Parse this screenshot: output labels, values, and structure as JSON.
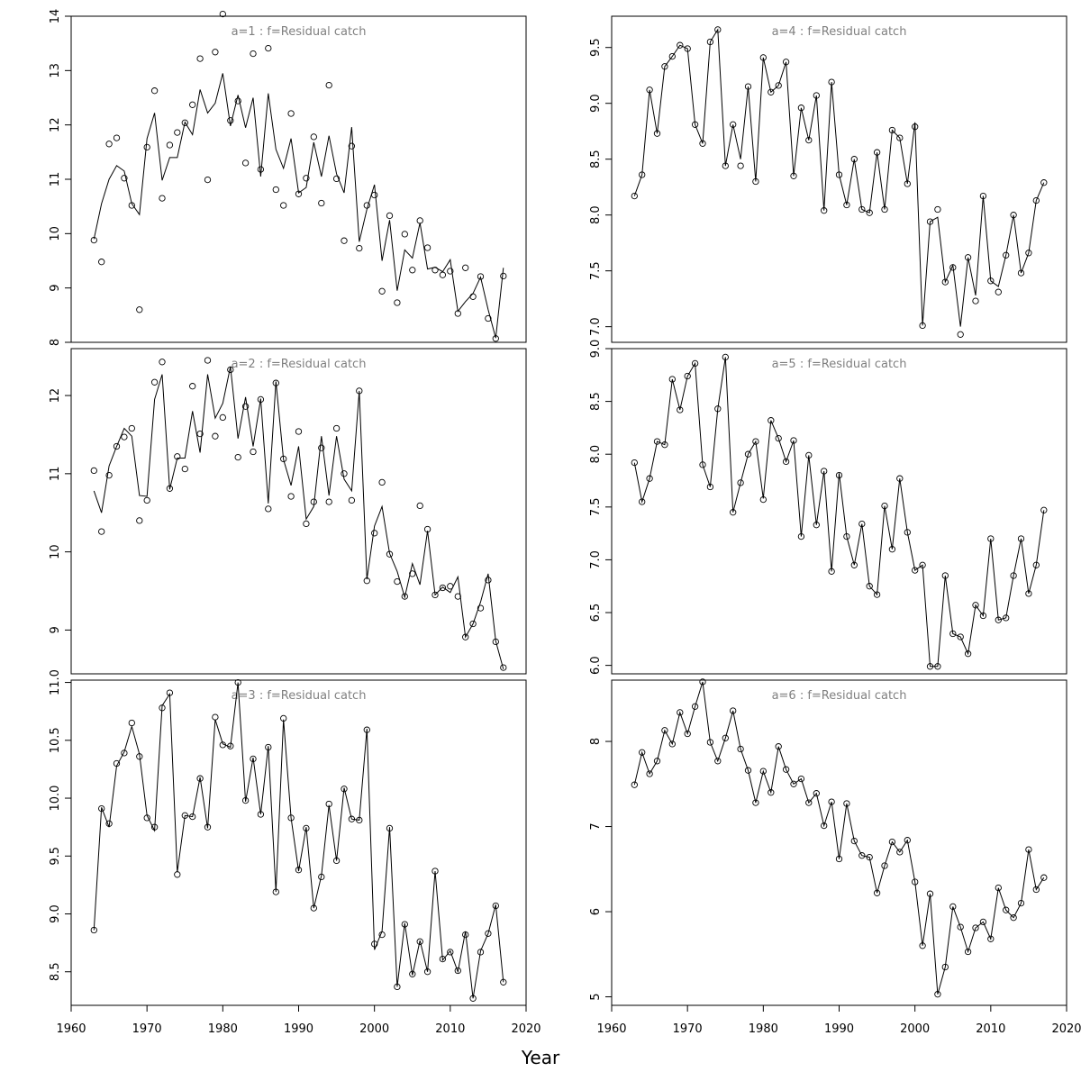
{
  "figure": {
    "xlabel": "Year",
    "x_ticks": [
      1960,
      1970,
      1980,
      1990,
      2000,
      2010,
      2020
    ],
    "colors": {
      "line": "#000000",
      "frame": "#000000",
      "panel_label": "#808080"
    }
  },
  "chart_data": [
    {
      "type": "line",
      "title": "a=1  :  f=Residual catch",
      "xlim": [
        1960,
        2020
      ],
      "ylim": [
        8,
        14
      ],
      "y_ticks": [
        8,
        9,
        10,
        11,
        12,
        13,
        14
      ],
      "x": [
        1963,
        1964,
        1965,
        1966,
        1967,
        1968,
        1969,
        1970,
        1971,
        1972,
        1973,
        1974,
        1975,
        1976,
        1977,
        1978,
        1979,
        1980,
        1981,
        1982,
        1983,
        1984,
        1985,
        1986,
        1987,
        1988,
        1989,
        1990,
        1991,
        1992,
        1993,
        1994,
        1995,
        1996,
        1997,
        1998,
        1999,
        2000,
        2001,
        2002,
        2003,
        2004,
        2005,
        2006,
        2007,
        2008,
        2009,
        2010,
        2011,
        2012,
        2013,
        2014,
        2015,
        2016,
        2017
      ],
      "series": [
        {
          "values": [
            9.88,
            9.48,
            11.65,
            11.76,
            11.02,
            10.52,
            8.6,
            11.59,
            12.63,
            10.65,
            11.63,
            11.86,
            12.04,
            12.37,
            13.22,
            10.99,
            13.34,
            14.04,
            12.08,
            12.44,
            11.3,
            13.31,
            11.18,
            13.41,
            10.81,
            10.52,
            12.21,
            10.73,
            11.02,
            11.78,
            10.56,
            12.73,
            11.01,
            9.87,
            11.61,
            9.73,
            10.52,
            10.71,
            8.94,
            10.33,
            8.73,
            9.99,
            9.33,
            10.24,
            9.74,
            9.33,
            9.24,
            9.31,
            8.53,
            9.37,
            8.84,
            9.21,
            8.44,
            8.07,
            9.22
          ]
        },
        {
          "values": [
            9.9,
            10.55,
            11.0,
            11.25,
            11.15,
            10.55,
            10.35,
            11.75,
            12.22,
            10.98,
            11.4,
            11.4,
            12.05,
            11.82,
            12.65,
            12.22,
            12.4,
            12.95,
            11.98,
            12.55,
            11.95,
            12.5,
            11.05,
            12.58,
            11.55,
            11.2,
            11.75,
            10.75,
            10.85,
            11.68,
            11.05,
            11.8,
            11.1,
            10.75,
            11.96,
            9.85,
            10.45,
            10.9,
            9.5,
            10.25,
            8.95,
            9.7,
            9.55,
            10.2,
            9.35,
            9.38,
            9.3,
            9.52,
            8.57,
            8.75,
            8.9,
            9.2,
            8.6,
            8.08,
            9.37
          ]
        }
      ]
    },
    {
      "type": "line",
      "title": "a=2  :  f=Residual catch",
      "xlim": [
        1960,
        2020
      ],
      "ylim": [
        8.44,
        12.6
      ],
      "y_ticks": [
        9,
        10,
        11,
        12
      ],
      "x": [
        1963,
        1964,
        1965,
        1966,
        1967,
        1968,
        1969,
        1970,
        1971,
        1972,
        1973,
        1974,
        1975,
        1976,
        1977,
        1978,
        1979,
        1980,
        1981,
        1982,
        1983,
        1984,
        1985,
        1986,
        1987,
        1988,
        1989,
        1990,
        1991,
        1992,
        1993,
        1994,
        1995,
        1996,
        1997,
        1998,
        1999,
        2000,
        2001,
        2002,
        2003,
        2004,
        2005,
        2006,
        2007,
        2008,
        2009,
        2010,
        2011,
        2012,
        2013,
        2014,
        2015,
        2016,
        2017
      ],
      "series": [
        {
          "values": [
            11.04,
            10.26,
            10.98,
            11.35,
            11.47,
            11.58,
            10.4,
            10.66,
            12.17,
            12.43,
            10.81,
            11.22,
            11.06,
            12.12,
            11.51,
            12.45,
            11.48,
            11.72,
            12.33,
            11.21,
            11.86,
            11.28,
            11.95,
            10.55,
            12.16,
            11.19,
            10.71,
            11.54,
            10.36,
            10.64,
            11.33,
            10.64,
            11.58,
            11.0,
            10.66,
            12.06,
            9.63,
            10.24,
            10.89,
            9.97,
            9.62,
            9.43,
            9.72,
            10.59,
            10.29,
            9.45,
            9.54,
            9.56,
            9.43,
            8.91,
            9.08,
            9.28,
            9.64,
            8.85,
            8.52
          ]
        },
        {
          "values": [
            10.78,
            10.5,
            11.1,
            11.35,
            11.58,
            11.48,
            10.72,
            10.71,
            11.95,
            12.27,
            10.8,
            11.2,
            11.2,
            11.8,
            11.27,
            12.27,
            11.71,
            11.9,
            12.37,
            11.45,
            11.98,
            11.35,
            11.96,
            10.62,
            12.18,
            11.18,
            10.85,
            11.35,
            10.42,
            10.58,
            11.48,
            10.72,
            11.48,
            10.93,
            10.78,
            12.06,
            9.65,
            10.33,
            10.58,
            9.98,
            9.75,
            9.42,
            9.85,
            9.58,
            10.27,
            9.45,
            9.55,
            9.48,
            9.68,
            8.91,
            9.08,
            9.36,
            9.72,
            8.86,
            8.5
          ]
        }
      ]
    },
    {
      "type": "line",
      "title": "a=3  :  f=Residual catch",
      "xlim": [
        1960,
        2020
      ],
      "ylim": [
        8.21,
        11.02
      ],
      "y_ticks": [
        8.5,
        9.0,
        9.5,
        10.0,
        10.5,
        11.0
      ],
      "y_tick_labels": [
        "8.5",
        "9.0",
        "9.5",
        "10.0",
        "10.5",
        "11.0"
      ],
      "x": [
        1963,
        1964,
        1965,
        1966,
        1967,
        1968,
        1969,
        1970,
        1971,
        1972,
        1973,
        1974,
        1975,
        1976,
        1977,
        1978,
        1979,
        1980,
        1981,
        1982,
        1983,
        1984,
        1985,
        1986,
        1987,
        1988,
        1989,
        1990,
        1991,
        1992,
        1993,
        1994,
        1995,
        1996,
        1997,
        1998,
        1999,
        2000,
        2001,
        2002,
        2003,
        2004,
        2005,
        2006,
        2007,
        2008,
        2009,
        2010,
        2011,
        2012,
        2013,
        2014,
        2015,
        2016,
        2017
      ],
      "series": [
        {
          "values": [
            8.86,
            9.91,
            9.78,
            10.3,
            10.39,
            10.65,
            10.36,
            9.83,
            9.75,
            10.78,
            10.91,
            9.34,
            9.85,
            9.84,
            10.17,
            9.75,
            10.7,
            10.46,
            10.45,
            11.0,
            9.98,
            10.34,
            9.86,
            10.44,
            9.19,
            10.69,
            9.83,
            9.38,
            9.74,
            9.05,
            9.32,
            9.95,
            9.46,
            10.08,
            9.82,
            9.81,
            10.59,
            8.74,
            8.82,
            9.74,
            8.37,
            8.91,
            8.48,
            8.76,
            8.5,
            9.37,
            8.61,
            8.67,
            8.51,
            8.82,
            8.27,
            8.67,
            8.83,
            9.07,
            8.41
          ]
        },
        {
          "values": [
            8.86,
            9.92,
            9.75,
            10.28,
            10.4,
            10.62,
            10.38,
            9.85,
            9.72,
            10.8,
            10.9,
            9.36,
            9.85,
            9.84,
            10.18,
            9.74,
            10.68,
            10.47,
            10.44,
            11.0,
            9.97,
            10.35,
            9.86,
            10.45,
            9.19,
            10.68,
            9.83,
            9.37,
            9.75,
            9.05,
            9.33,
            9.94,
            9.46,
            10.09,
            9.82,
            9.81,
            10.6,
            8.69,
            8.85,
            9.75,
            8.37,
            8.92,
            8.47,
            8.77,
            8.5,
            9.37,
            8.6,
            8.68,
            8.5,
            8.85,
            8.27,
            8.68,
            8.83,
            9.08,
            8.41
          ]
        }
      ]
    },
    {
      "type": "line",
      "title": "a=4  :  f=Residual catch",
      "xlim": [
        1960,
        2020
      ],
      "ylim": [
        6.86,
        9.78
      ],
      "y_ticks": [
        7.0,
        7.5,
        8.0,
        8.5,
        9.0,
        9.5
      ],
      "y_tick_labels": [
        "7.0",
        "7.5",
        "8.0",
        "8.5",
        "9.0",
        "9.5"
      ],
      "x": [
        1963,
        1964,
        1965,
        1966,
        1967,
        1968,
        1969,
        1970,
        1971,
        1972,
        1973,
        1974,
        1975,
        1976,
        1977,
        1978,
        1979,
        1980,
        1981,
        1982,
        1983,
        1984,
        1985,
        1986,
        1987,
        1988,
        1989,
        1990,
        1991,
        1992,
        1993,
        1994,
        1995,
        1996,
        1997,
        1998,
        1999,
        2000,
        2001,
        2002,
        2003,
        2004,
        2005,
        2006,
        2007,
        2008,
        2009,
        2010,
        2011,
        2012,
        2013,
        2014,
        2015,
        2016,
        2017
      ],
      "series": [
        {
          "values": [
            8.17,
            8.36,
            9.12,
            8.73,
            9.33,
            9.42,
            9.52,
            9.49,
            8.81,
            8.64,
            9.55,
            9.66,
            8.44,
            8.81,
            8.44,
            9.15,
            8.3,
            9.41,
            9.1,
            9.16,
            9.37,
            8.35,
            8.96,
            8.67,
            9.07,
            8.04,
            9.19,
            8.36,
            8.09,
            8.5,
            8.05,
            8.02,
            8.56,
            8.05,
            8.76,
            8.69,
            8.28,
            8.79,
            7.01,
            7.94,
            8.05,
            7.4,
            7.53,
            6.93,
            7.62,
            7.23,
            8.17,
            7.41,
            7.31,
            7.64,
            8.0,
            7.48,
            7.66,
            8.13,
            8.29
          ]
        },
        {
          "values": [
            8.17,
            8.36,
            9.12,
            8.73,
            9.33,
            9.42,
            9.52,
            9.49,
            8.81,
            8.64,
            9.55,
            9.66,
            8.44,
            8.81,
            8.5,
            9.15,
            8.3,
            9.41,
            9.1,
            9.16,
            9.37,
            8.35,
            8.96,
            8.67,
            9.07,
            8.04,
            9.19,
            8.36,
            8.09,
            8.5,
            8.05,
            8.02,
            8.56,
            8.05,
            8.76,
            8.69,
            8.28,
            8.83,
            7.01,
            7.94,
            7.98,
            7.4,
            7.55,
            7.0,
            7.62,
            7.28,
            8.17,
            7.41,
            7.36,
            7.64,
            8.0,
            7.48,
            7.66,
            8.13,
            8.29
          ]
        }
      ]
    },
    {
      "type": "line",
      "title": "a=5  :  f=Residual catch",
      "xlim": [
        1960,
        2020
      ],
      "ylim": [
        5.92,
        9.0
      ],
      "y_ticks": [
        6.0,
        6.5,
        7.0,
        7.5,
        8.0,
        8.5,
        9.0
      ],
      "y_tick_labels": [
        "6.0",
        "6.5",
        "7.0",
        "7.5",
        "8.0",
        "8.5",
        "9.0"
      ],
      "x": [
        1963,
        1964,
        1965,
        1966,
        1967,
        1968,
        1969,
        1970,
        1971,
        1972,
        1973,
        1974,
        1975,
        1976,
        1977,
        1978,
        1979,
        1980,
        1981,
        1982,
        1983,
        1984,
        1985,
        1986,
        1987,
        1988,
        1989,
        1990,
        1991,
        1992,
        1993,
        1994,
        1995,
        1996,
        1997,
        1998,
        1999,
        2000,
        2001,
        2002,
        2003,
        2004,
        2005,
        2006,
        2007,
        2008,
        2009,
        2010,
        2011,
        2012,
        2013,
        2014,
        2015,
        2016,
        2017
      ],
      "series": [
        {
          "values": [
            7.92,
            7.55,
            7.77,
            8.12,
            8.09,
            8.71,
            8.42,
            8.74,
            8.86,
            7.9,
            7.69,
            8.43,
            8.92,
            7.45,
            7.73,
            8.0,
            8.12,
            7.57,
            8.32,
            8.15,
            7.93,
            8.13,
            7.22,
            7.99,
            7.33,
            7.84,
            6.89,
            7.8,
            7.22,
            6.95,
            7.34,
            6.75,
            6.67,
            7.51,
            7.1,
            7.77,
            7.26,
            6.9,
            6.95,
            5.99,
            5.99,
            6.85,
            6.3,
            6.27,
            6.11,
            6.57,
            6.47,
            7.2,
            6.43,
            6.45,
            6.85,
            7.2,
            6.68,
            6.95,
            7.47
          ]
        },
        {
          "values": [
            7.92,
            7.55,
            7.77,
            8.12,
            8.09,
            8.71,
            8.42,
            8.74,
            8.86,
            7.9,
            7.69,
            8.43,
            8.92,
            7.45,
            7.73,
            8.0,
            8.12,
            7.58,
            8.32,
            8.15,
            7.93,
            8.13,
            7.22,
            7.99,
            7.33,
            7.84,
            6.89,
            7.82,
            7.22,
            6.95,
            7.34,
            6.75,
            6.67,
            7.51,
            7.1,
            7.77,
            7.26,
            6.9,
            6.95,
            5.99,
            5.99,
            6.85,
            6.3,
            6.27,
            6.11,
            6.57,
            6.47,
            7.2,
            6.43,
            6.45,
            6.85,
            7.2,
            6.68,
            6.95,
            7.47
          ]
        }
      ]
    },
    {
      "type": "line",
      "title": "a=6  :  f=Residual catch",
      "xlim": [
        1960,
        2020
      ],
      "ylim": [
        4.9,
        8.72
      ],
      "y_ticks": [
        5,
        6,
        7,
        8
      ],
      "x": [
        1963,
        1964,
        1965,
        1966,
        1967,
        1968,
        1969,
        1970,
        1971,
        1972,
        1973,
        1974,
        1975,
        1976,
        1977,
        1978,
        1979,
        1980,
        1981,
        1982,
        1983,
        1984,
        1985,
        1986,
        1987,
        1988,
        1989,
        1990,
        1991,
        1992,
        1993,
        1994,
        1995,
        1996,
        1997,
        1998,
        1999,
        2000,
        2001,
        2002,
        2003,
        2004,
        2005,
        2006,
        2007,
        2008,
        2009,
        2010,
        2011,
        2012,
        2013,
        2014,
        2015,
        2016,
        2017
      ],
      "series": [
        {
          "values": [
            7.49,
            7.87,
            7.62,
            7.77,
            8.13,
            7.97,
            8.34,
            8.09,
            8.41,
            8.7,
            7.99,
            7.77,
            8.04,
            8.36,
            7.91,
            7.66,
            7.28,
            7.65,
            7.4,
            7.94,
            7.67,
            7.5,
            7.56,
            7.28,
            7.39,
            7.01,
            7.29,
            6.62,
            7.27,
            6.83,
            6.66,
            6.64,
            6.22,
            6.54,
            6.82,
            6.7,
            6.84,
            6.35,
            5.6,
            6.21,
            5.03,
            5.35,
            6.06,
            5.82,
            5.53,
            5.81,
            5.88,
            5.68,
            6.28,
            6.02,
            5.93,
            6.1,
            6.73,
            6.26,
            6.4
          ]
        },
        {
          "values": [
            7.49,
            7.87,
            7.62,
            7.77,
            8.13,
            7.97,
            8.34,
            8.09,
            8.41,
            8.7,
            7.99,
            7.77,
            8.04,
            8.36,
            7.91,
            7.66,
            7.28,
            7.65,
            7.4,
            7.94,
            7.67,
            7.5,
            7.56,
            7.28,
            7.39,
            7.01,
            7.29,
            6.62,
            7.27,
            6.83,
            6.66,
            6.64,
            6.22,
            6.54,
            6.82,
            6.7,
            6.84,
            6.35,
            5.6,
            6.21,
            5.03,
            5.35,
            6.06,
            5.82,
            5.53,
            5.81,
            5.88,
            5.68,
            6.28,
            6.02,
            5.93,
            6.1,
            6.73,
            6.26,
            6.4
          ]
        }
      ]
    }
  ]
}
